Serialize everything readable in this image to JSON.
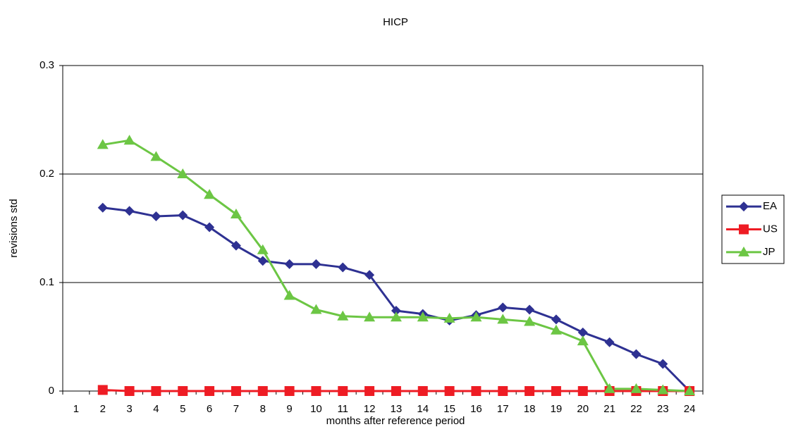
{
  "chart_data": {
    "type": "line",
    "title": "HICP",
    "x_label": "months after reference period",
    "y_label": "revisions std",
    "categories": [
      "1",
      "2",
      "3",
      "4",
      "5",
      "6",
      "7",
      "8",
      "9",
      "10",
      "11",
      "12",
      "13",
      "14",
      "15",
      "16",
      "17",
      "18",
      "19",
      "20",
      "21",
      "22",
      "23",
      "24"
    ],
    "series": [
      {
        "name": "EA",
        "color": "#2e3192",
        "marker": "diamond",
        "values": [
          null,
          0.169,
          0.166,
          0.161,
          0.162,
          0.151,
          0.134,
          0.12,
          0.117,
          0.117,
          0.114,
          0.107,
          0.074,
          0.071,
          0.065,
          0.07,
          0.077,
          0.075,
          0.066,
          0.054,
          0.045,
          0.034,
          0.025,
          0
        ]
      },
      {
        "name": "US",
        "color": "#ee1c24",
        "marker": "square",
        "values": [
          null,
          0.001,
          0,
          0,
          0,
          0,
          0,
          0,
          0,
          0,
          0,
          0,
          0,
          0,
          0,
          0,
          0,
          0,
          0,
          0,
          0,
          0,
          0,
          0
        ]
      },
      {
        "name": "JP",
        "color": "#6cc644",
        "marker": "triangle",
        "values": [
          null,
          0.227,
          0.231,
          0.216,
          0.2,
          0.181,
          0.163,
          0.13,
          0.088,
          0.075,
          0.069,
          0.068,
          0.068,
          0.068,
          0.067,
          0.068,
          0.066,
          0.064,
          0.056,
          0.046,
          0.002,
          0.002,
          0.001,
          0
        ]
      }
    ],
    "ylim": [
      0,
      0.3
    ],
    "yticks": [
      0,
      0.1,
      0.2,
      0.3
    ],
    "grid": true,
    "legend": "right"
  }
}
